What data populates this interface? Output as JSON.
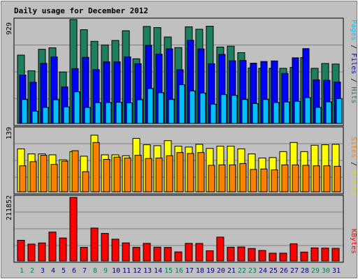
{
  "title": "Daily usage for December 2012",
  "colors": {
    "hits": "#1e7f5f",
    "files": "#0000ff",
    "pages": "#00c0ff",
    "visits": "#ffff00",
    "sites": "#ff8000",
    "kbytes": "#ff0000",
    "weekend_day": "#00805c",
    "weekday": "#000080",
    "title": "#0000ff",
    "panel_bg": "#c0c0c0"
  },
  "chart_data": [
    {
      "type": "bar",
      "name": "hits-files-pages",
      "max_label": "929",
      "ylim": [
        0,
        929
      ],
      "legend": [
        "Pages",
        "Files",
        "Hits"
      ],
      "categories": [
        "1",
        "2",
        "3",
        "4",
        "5",
        "6",
        "7",
        "8",
        "9",
        "10",
        "11",
        "12",
        "13",
        "14",
        "15",
        "16",
        "17",
        "18",
        "19",
        "20",
        "21",
        "22",
        "23",
        "24",
        "25",
        "26",
        "27",
        "28",
        "29",
        "30",
        "31"
      ],
      "series": [
        {
          "name": "Hits",
          "values": [
            611,
            471,
            663,
            676,
            460,
            929,
            838,
            734,
            702,
            742,
            829,
            578,
            867,
            857,
            773,
            678,
            864,
            842,
            869,
            683,
            691,
            633,
            496,
            493,
            493,
            493,
            501,
            589,
            493,
            536,
            531
          ]
        },
        {
          "name": "Files",
          "values": [
            433,
            368,
            537,
            595,
            327,
            490,
            591,
            481,
            551,
            551,
            595,
            534,
            698,
            619,
            667,
            480,
            744,
            666,
            534,
            617,
            560,
            563,
            539,
            554,
            559,
            447,
            587,
            669,
            390,
            386,
            370
          ]
        },
        {
          "name": "Pages",
          "values": [
            214,
            110,
            143,
            212,
            148,
            283,
            143,
            186,
            187,
            189,
            184,
            212,
            312,
            275,
            214,
            346,
            291,
            272,
            172,
            258,
            251,
            214,
            178,
            214,
            187,
            192,
            198,
            231,
            144,
            193,
            222
          ]
        }
      ]
    },
    {
      "type": "bar",
      "name": "visits-sites",
      "max_label": "139",
      "ylim": [
        0,
        139
      ],
      "legend": [
        "Sites",
        "Visits"
      ],
      "categories": [
        "1",
        "2",
        "3",
        "4",
        "5",
        "6",
        "7",
        "8",
        "9",
        "10",
        "11",
        "12",
        "13",
        "14",
        "15",
        "16",
        "17",
        "18",
        "19",
        "20",
        "21",
        "22",
        "23",
        "24",
        "25",
        "26",
        "27",
        "28",
        "29",
        "30",
        "31"
      ],
      "series": [
        {
          "name": "Visits",
          "values": [
            94,
            83,
            83,
            81,
            70,
            88,
            78,
            124,
            81,
            81,
            79,
            117,
            103,
            101,
            112,
            100,
            98,
            104,
            95,
            100,
            100,
            94,
            83,
            74,
            75,
            88,
            108,
            88,
            102,
            103,
            104
          ]
        },
        {
          "name": "Sites",
          "values": [
            57,
            66,
            80,
            60,
            67,
            90,
            44,
            108,
            71,
            76,
            74,
            80,
            73,
            74,
            79,
            86,
            84,
            86,
            58,
            59,
            59,
            62,
            49,
            50,
            48,
            59,
            59,
            58,
            57,
            57,
            56
          ]
        }
      ]
    },
    {
      "type": "bar",
      "name": "kbytes",
      "max_label": "211852",
      "ylim": [
        0,
        211852
      ],
      "legend": [
        "KBytes"
      ],
      "categories": [
        "1",
        "2",
        "3",
        "4",
        "5",
        "6",
        "7",
        "8",
        "9",
        "10",
        "11",
        "12",
        "13",
        "14",
        "15",
        "16",
        "17",
        "18",
        "19",
        "20",
        "21",
        "22",
        "23",
        "24",
        "25",
        "26",
        "27",
        "28",
        "29",
        "30",
        "31"
      ],
      "series": [
        {
          "name": "KBytes",
          "values": [
            68800,
            56000,
            59800,
            96100,
            76400,
            211852,
            45200,
            109500,
            91700,
            72400,
            60000,
            45200,
            58500,
            45800,
            45000,
            29900,
            58400,
            58100,
            33700,
            79300,
            45600,
            46400,
            41300,
            34700,
            25600,
            25700,
            57100,
            29400,
            43300,
            42600,
            41700
          ]
        }
      ]
    }
  ]
}
